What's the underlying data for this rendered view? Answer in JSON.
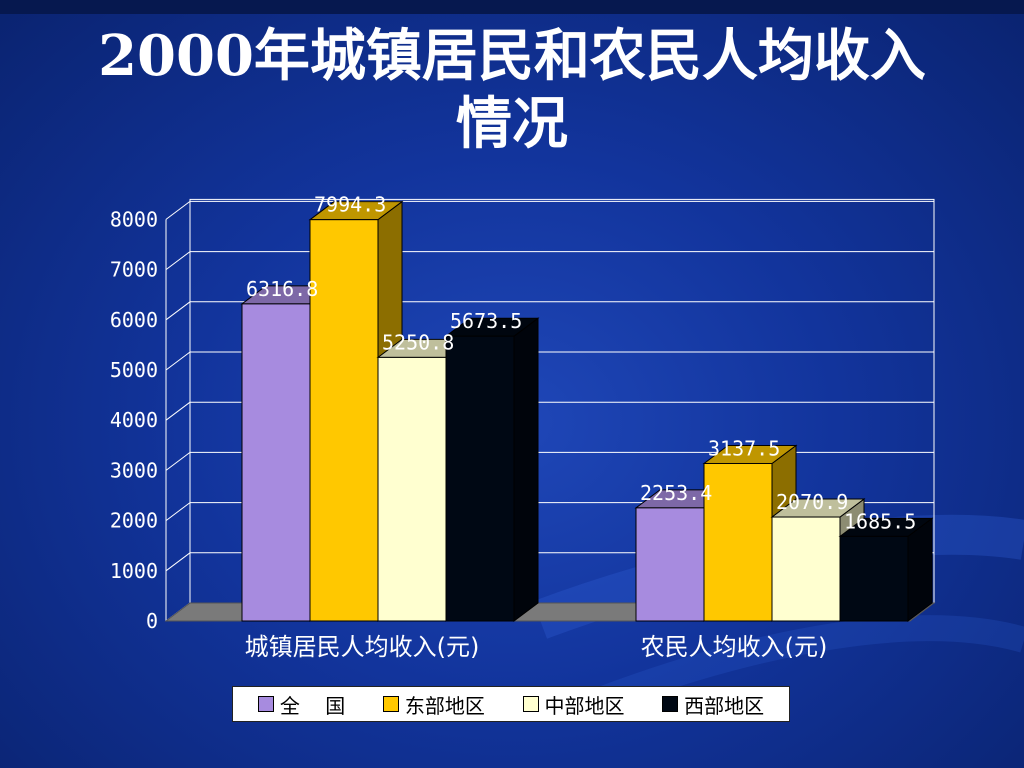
{
  "title_line1": "2000年城镇居民和农民人均收入",
  "title_line2": "情况",
  "chart_data": {
    "type": "bar",
    "categories": [
      "城镇居民人均收入(元)",
      "农民人均收入(元)"
    ],
    "series": [
      {
        "name": "全    国",
        "values": [
          6316.8,
          2253.4
        ],
        "labels": [
          "6316.8",
          "2253.4"
        ],
        "color": "#a78bdf"
      },
      {
        "name": "东部地区",
        "values": [
          7994.3,
          3137.5
        ],
        "labels": [
          "7994.3",
          "3137.5"
        ],
        "color": "#ffc800"
      },
      {
        "name": "中部地区",
        "values": [
          5250.8,
          2070.9
        ],
        "labels": [
          "5250.8",
          "2070.9"
        ],
        "color": "#ffffd0"
      },
      {
        "name": "西部地区",
        "values": [
          5673.5,
          1685.5
        ],
        "labels": [
          "5673.5",
          "1685.5"
        ],
        "color": "#000814"
      }
    ],
    "yticks": [
      0,
      1000,
      2000,
      3000,
      4000,
      5000,
      6000,
      7000,
      8000
    ],
    "ylim": [
      0,
      8000
    ],
    "grid": true,
    "legend": "bottom",
    "three_d": true
  },
  "colors": {
    "background": "#12349c",
    "text": "#ffffff",
    "gridline": "#ffffff",
    "floor": "#7a7a7a"
  }
}
